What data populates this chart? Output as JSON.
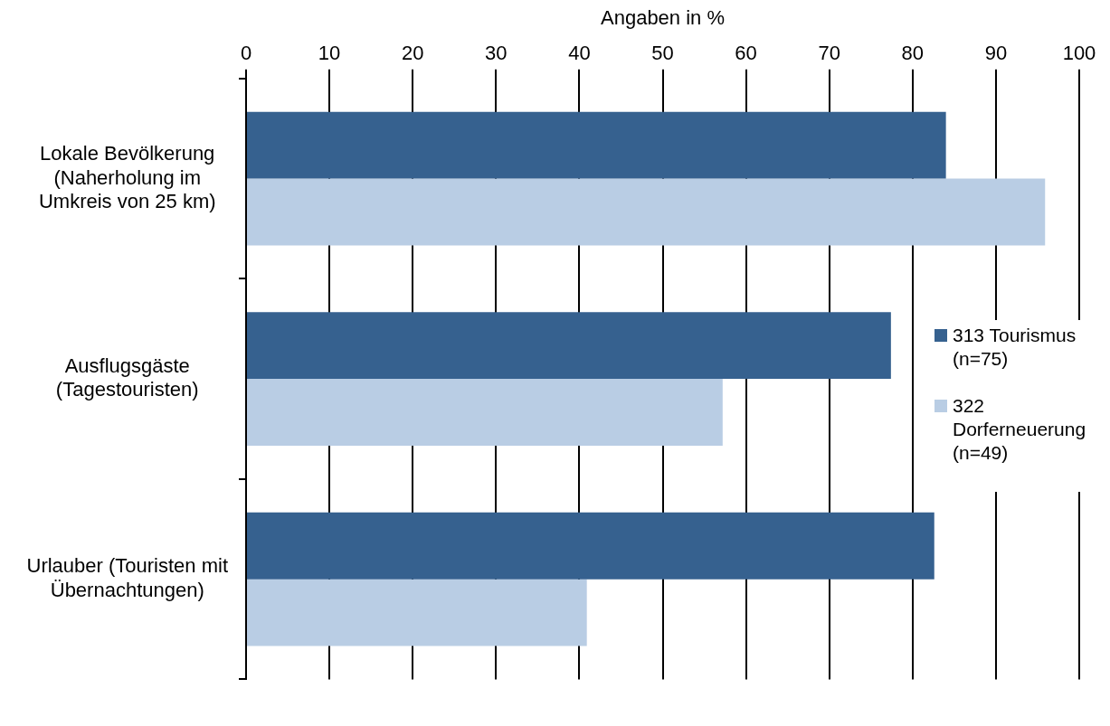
{
  "chart_data": {
    "type": "bar",
    "orientation": "horizontal",
    "xlabel": "Angaben in %",
    "categories": [
      "Lokale Bevölkerung (Naherholung im Umkreis von 25 km)",
      "Ausflugsgäste (Tagestouristen)",
      "Urlauber (Touristen mit Übernachtungen)"
    ],
    "series": [
      {
        "name": "313 Tourismus (n=75)",
        "color": "#36618f",
        "values": [
          84,
          77.4,
          82.6
        ]
      },
      {
        "name": "322 Dorferneuerung (n=49)",
        "color": "#b9cde4",
        "values": [
          95.9,
          57.2,
          40.9
        ]
      }
    ],
    "xlim": [
      0,
      100
    ],
    "xticks": [
      0,
      10,
      20,
      30,
      40,
      50,
      60,
      70,
      80,
      90,
      100
    ],
    "grid": "x",
    "legend": "right"
  }
}
